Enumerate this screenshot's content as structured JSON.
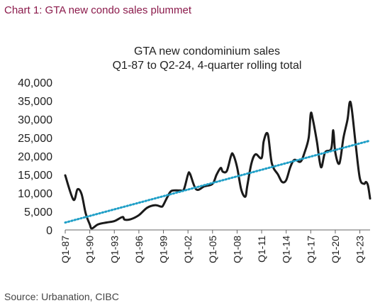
{
  "header": {
    "title": "Chart 1: GTA new condo sales plummet"
  },
  "source": "Source: Urbanation, CIBC",
  "colors": {
    "header": "#8b1a4b",
    "series": "#1a1a1a",
    "trend": "#1f9fc7"
  },
  "chart_data": {
    "type": "line",
    "title": "GTA new condominium sales",
    "subtitle": "Q1-87 to Q2-24, 4-quarter rolling total",
    "xlabel": "",
    "ylabel": "",
    "ylim": [
      0,
      40000
    ],
    "yticks": [
      "0",
      "5,000",
      "10,000",
      "15,000",
      "20,000",
      "25,000",
      "30,000",
      "35,000",
      "40,000"
    ],
    "xticks": [
      "Q1-87",
      "Q1-90",
      "Q1-93",
      "Q1-96",
      "Q1-99",
      "Q1-02",
      "Q1-05",
      "Q1-08",
      "Q1-11",
      "Q1-14",
      "Q1-17",
      "Q1-20",
      "Q1-23"
    ],
    "grid": false,
    "legend": "none",
    "series": [
      {
        "type": "line",
        "points": [
          [
            "Q1-87",
            14800
          ],
          [
            "Q1-88",
            8200
          ],
          [
            "Q3-88",
            11000
          ],
          [
            "Q1-89",
            9700
          ],
          [
            "Q3-89",
            4500
          ],
          [
            "Q1-90",
            1500
          ],
          [
            "Q2-90",
            400
          ],
          [
            "Q1-91",
            1500
          ],
          [
            "Q1-92",
            2000
          ],
          [
            "Q1-93",
            2400
          ],
          [
            "Q1-94",
            3500
          ],
          [
            "Q2-94",
            2800
          ],
          [
            "Q1-95",
            2900
          ],
          [
            "Q1-96",
            4000
          ],
          [
            "Q1-97",
            6000
          ],
          [
            "Q1-98",
            6700
          ],
          [
            "Q4-98",
            6300
          ],
          [
            "Q1-99",
            6800
          ],
          [
            "Q3-99",
            9000
          ],
          [
            "Q1-00",
            10600
          ],
          [
            "Q1-01",
            10700
          ],
          [
            "Q3-01",
            11000
          ],
          [
            "Q1-02",
            15000
          ],
          [
            "Q2-02",
            15200
          ],
          [
            "Q1-03",
            11000
          ],
          [
            "Q1-04",
            11800
          ],
          [
            "Q1-05",
            12500
          ],
          [
            "Q3-05",
            15000
          ],
          [
            "Q1-06",
            16800
          ],
          [
            "Q2-06",
            15800
          ],
          [
            "Q4-06",
            16000
          ],
          [
            "Q2-07",
            20000
          ],
          [
            "Q3-07",
            20500
          ],
          [
            "Q1-08",
            17000
          ],
          [
            "Q3-08",
            11000
          ],
          [
            "Q1-09",
            9000
          ],
          [
            "Q2-09",
            12000
          ],
          [
            "Q4-09",
            18000
          ],
          [
            "Q2-10",
            20500
          ],
          [
            "Q1-11",
            19500
          ],
          [
            "Q2-11",
            24000
          ],
          [
            "Q4-11",
            26000
          ],
          [
            "Q2-12",
            18000
          ],
          [
            "Q1-13",
            15000
          ],
          [
            "Q3-13",
            13000
          ],
          [
            "Q1-14",
            13500
          ],
          [
            "Q3-14",
            17000
          ],
          [
            "Q1-15",
            19000
          ],
          [
            "Q4-15",
            18500
          ],
          [
            "Q2-16",
            21000
          ],
          [
            "Q4-16",
            25000
          ],
          [
            "Q1-17",
            31500
          ],
          [
            "Q2-17",
            30000
          ],
          [
            "Q4-17",
            24000
          ],
          [
            "Q2-18",
            17000
          ],
          [
            "Q4-18",
            21000
          ],
          [
            "Q3-19",
            22000
          ],
          [
            "Q4-19",
            27000
          ],
          [
            "Q1-20",
            21000
          ],
          [
            "Q3-20",
            18000
          ],
          [
            "Q1-21",
            25000
          ],
          [
            "Q3-21",
            30000
          ],
          [
            "Q4-21",
            34500
          ],
          [
            "Q1-22",
            33000
          ],
          [
            "Q3-22",
            23000
          ],
          [
            "Q1-23",
            14000
          ],
          [
            "Q3-23",
            12500
          ],
          [
            "Q4-23",
            13000
          ],
          [
            "Q1-24",
            12000
          ],
          [
            "Q2-24",
            8500
          ]
        ]
      },
      {
        "type": "trend",
        "points": [
          [
            "Q1-87",
            2000
          ],
          [
            "Q2-24",
            24200
          ]
        ]
      }
    ]
  }
}
